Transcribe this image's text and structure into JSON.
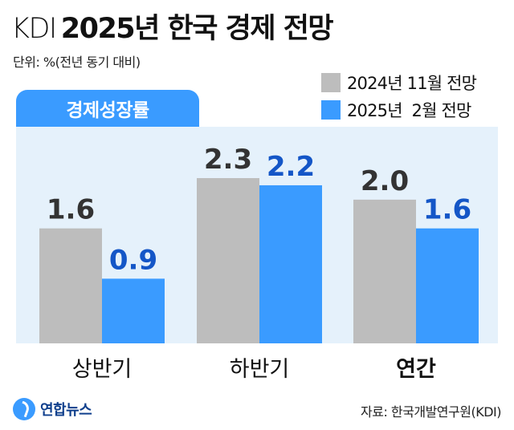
{
  "header": {
    "org": "KDI",
    "title": "2025년 한국 경제 전망",
    "unit": "단위: %(전년 동기 대비)"
  },
  "section_label": "경제성장률",
  "footer": {
    "logo": "연합뉴스",
    "source": "자료: 한국개발연구원(KDI)"
  },
  "colors": {
    "series_nov": "#bdbdbd",
    "series_feb": "#3a9bff",
    "label_nov": "#333333",
    "label_feb": "#1456c7",
    "panel": "#e5f1fb"
  },
  "chart_data": {
    "type": "bar",
    "categories": [
      "상반기",
      "하반기",
      "연간"
    ],
    "category_bold": [
      false,
      false,
      true
    ],
    "series": [
      {
        "name": "2024년 11월 전망",
        "values": [
          1.6,
          2.3,
          2.0
        ],
        "labels": [
          "1.6",
          "2.3",
          "2.0"
        ]
      },
      {
        "name": "2025년  2월 전망",
        "values": [
          0.9,
          2.2,
          1.6
        ],
        "labels": [
          "0.9",
          "2.2",
          "1.6"
        ]
      }
    ],
    "ylim": [
      0,
      2.3
    ],
    "grid": false,
    "legend_position": "top-right",
    "xlabel": "",
    "ylabel": ""
  }
}
